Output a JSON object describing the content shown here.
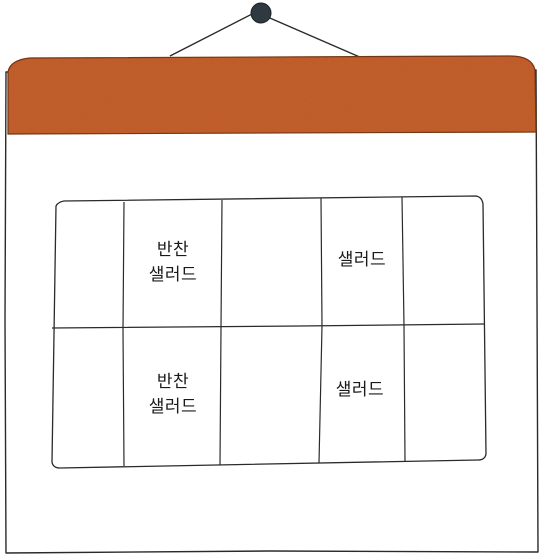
{
  "calendar": {
    "header_color": "#c8622e",
    "pin_color": "#2f3a40",
    "cells": [
      {
        "lines": [
          "반찬",
          "샐러드"
        ]
      },
      {
        "lines": [
          "샐러드"
        ]
      },
      {
        "lines": [
          "반찬",
          "샐러드"
        ]
      },
      {
        "lines": [
          "샐러드"
        ]
      }
    ]
  }
}
